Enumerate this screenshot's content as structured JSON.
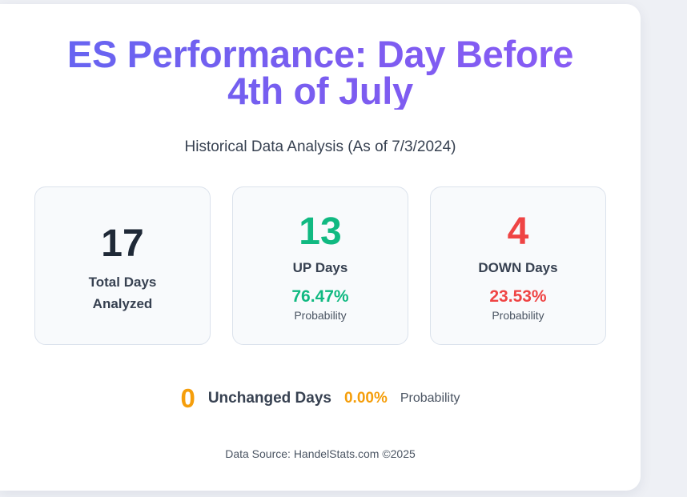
{
  "header": {
    "title_line1": "ES Performance: Day Before",
    "title_line2": "4th of July",
    "subtitle": "Historical Data Analysis (As of 7/3/2024)"
  },
  "stats": {
    "total": {
      "value": "17",
      "label": "Total Days Analyzed"
    },
    "up": {
      "value": "13",
      "label": "UP Days",
      "percent": "76.47%",
      "prob_label": "Probability"
    },
    "down": {
      "value": "4",
      "label": "DOWN Days",
      "percent": "23.53%",
      "prob_label": "Probability"
    }
  },
  "unchanged": {
    "value": "0",
    "label": "Unchanged Days",
    "percent": "0.00%",
    "prob_label": "Probability"
  },
  "footer": {
    "source": "Data Source: HandelStats.com ©2025"
  },
  "colors": {
    "title_gradient_start": "#6366f1",
    "title_gradient_end": "#8b5cf6",
    "up": "#10b981",
    "down": "#ef4444",
    "unchanged": "#f59e0b"
  }
}
